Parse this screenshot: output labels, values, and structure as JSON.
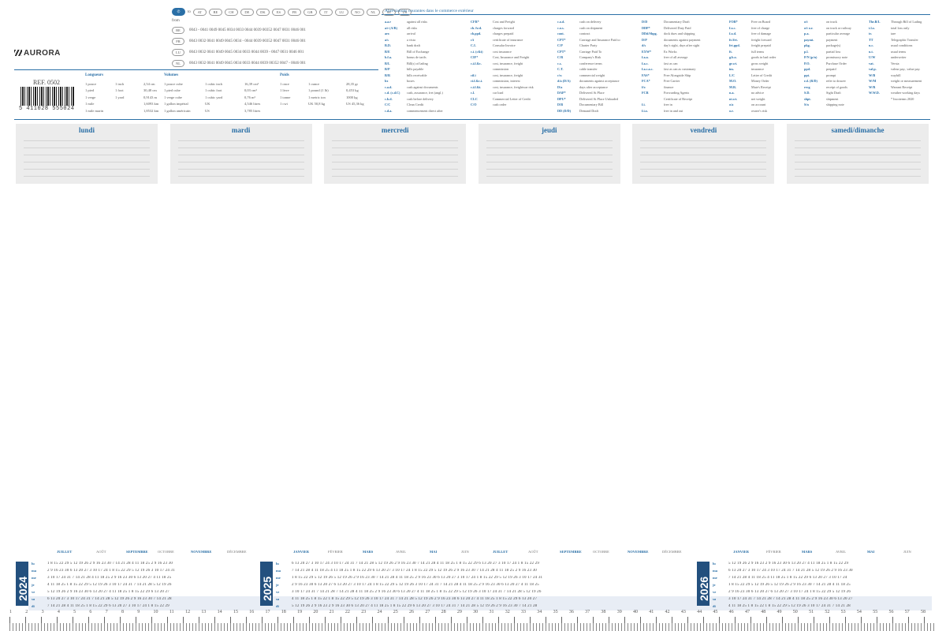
{
  "brand": "AURORA",
  "ref": "REF. 0502",
  "barcode_number": "5 411028 555024",
  "phone": {
    "countries": [
      "AT",
      "BE",
      "CH",
      "DE",
      "DK",
      "ES",
      "FR",
      "GB",
      "IT",
      "LU",
      "NO",
      "NL",
      "SE",
      "US"
    ],
    "from_label": "from",
    "rows": [
      {
        "code": "BE",
        "nums": "0043 - 0041 0049 0045 0034 0033 0044 0039 00352 0047 0031 0046 001"
      },
      {
        "code": "FR",
        "nums": "0043 0032 0041 0049 0045 0034 - 0044 0039 00352 0047 0031 0046 001"
      },
      {
        "code": "LU",
        "nums": "0043 0032 0041 0049 0045 0034 0033 0044 0039 - 0047 0031 0046 001"
      },
      {
        "code": "NL",
        "nums": "0043 0032 0041 0049 0045 0034 0033 0044 0039 00352 0047 - 0046 001"
      }
    ]
  },
  "conversions": {
    "lengths": {
      "title": "Longueurs",
      "rows": [
        [
          "1 pouce",
          "1 inch",
          "2,54 cm"
        ],
        [
          "1 pied",
          "1 foot",
          "30,48 cm"
        ],
        [
          "1 verge",
          "1 yard",
          "0,9143 m"
        ],
        [
          "1 mile",
          "",
          "1,6093 km"
        ],
        [
          "1 mile marin",
          "",
          "1,8532 km"
        ]
      ]
    },
    "volumes": {
      "title": "Volumes",
      "rows": [
        [
          "1 pouce cube",
          "1 cubic inch",
          "16,39 cm³"
        ],
        [
          "1 pied cube",
          "1 cubic foot",
          "0,03 cm³"
        ],
        [
          "1 verge cube",
          "1 cubic yard",
          "0,76 m³"
        ],
        [
          "1 gallon impérial",
          "UK",
          "4,546 litres"
        ],
        [
          "1 gallon américain",
          "US",
          "3,785 litres"
        ]
      ]
    },
    "weights": {
      "title": "Poids",
      "rows": [
        [
          "1 once",
          "1 ounce",
          "28,35 gr"
        ],
        [
          "1 livre",
          "1 pound (1 lb)",
          "0,453 kg"
        ],
        [
          "1 tonne",
          "1 metric ton",
          "1000 kg"
        ],
        [
          "1 cwt",
          "UK 50,8 kg",
          "US 45,36 kg"
        ]
      ]
    }
  },
  "abbreviations": {
    "title": "Abréviations courantes dans le commerce extérieur",
    "columns": [
      [
        [
          "a.a.r",
          "against all risks"
        ],
        [
          "a/r (A/R)",
          "all risks"
        ],
        [
          "arr.",
          "arrival"
        ],
        [
          "a/s",
          "a vista"
        ],
        [
          "B.D.",
          "bank draft"
        ],
        [
          "B/E",
          "Bill of Exchange"
        ],
        [
          "b.f.a.",
          "bonus de tarifs"
        ],
        [
          "B/L",
          "Bill(s) of lading"
        ],
        [
          "B/P",
          "bills payable"
        ],
        [
          "B/R",
          "bills receivable"
        ],
        [
          "bx",
          "boxes"
        ],
        [
          "c.a.d.",
          "cash against documents"
        ],
        [
          "c.d. (c.d.C)",
          "cash, assurance, fret (angl.)"
        ],
        [
          "c.b.d.",
          "cash before delivery"
        ],
        [
          "C/C",
          "Clean Credit"
        ],
        [
          "c.d.a.",
          "commencement direct after"
        ]
      ],
      [
        [
          "CFR*",
          "Cost and Freight"
        ],
        [
          "ch. fwd.",
          "charges forward"
        ],
        [
          "ch.ppd.",
          "charges prepaid"
        ],
        [
          "c/i",
          "certificate of insurance"
        ],
        [
          "C.I.",
          "Consular Invoice"
        ],
        [
          "c.i. (c&i)",
          "cost insurance"
        ],
        [
          "CIF*",
          "Cost, Insurance and Freight"
        ],
        [
          "c.i.f.&c.",
          "cost, insurance, freight"
        ],
        [
          "",
          "commission"
        ],
        [
          "cif.i",
          "cost, insurance, freight"
        ],
        [
          "ci.f.&c.i.",
          "commission, interest"
        ],
        [
          "c.i.f.&i.",
          "cost, insurance, freightwar risk"
        ],
        [
          "c.l.",
          "car load"
        ],
        [
          "CLC",
          "Commercial Letter of Credit"
        ],
        [
          "C/O",
          "cash order"
        ]
      ],
      [
        [
          "c.o.d.",
          "cash on delivery"
        ],
        [
          "c.o.s.",
          "cash on shipment"
        ],
        [
          "cont.",
          "contract"
        ],
        [
          "CPT*",
          "Carriage and Insurance Paid to"
        ],
        [
          "C/P",
          "Charter Party"
        ],
        [
          "CPT*",
          "Carriage Paid To"
        ],
        [
          "C/R",
          "Company's Risk"
        ],
        [
          "c.s.",
          "conference terms"
        ],
        [
          "C.T.",
          "cable transfer"
        ],
        [
          "c/w",
          "commercial weight"
        ],
        [
          "d/a (D/A)",
          "documents against acceptance"
        ],
        [
          "D/a",
          "days after acceptance"
        ],
        [
          "DAP*",
          "Delivered At Place"
        ],
        [
          "DPU*",
          "Delivered At Place Unloaded"
        ],
        [
          "D/B",
          "Documentary Bill"
        ],
        [
          "DD (D/D)",
          "Demand Draft"
        ]
      ],
      [
        [
          "D/D",
          "Documentary Draft"
        ],
        [
          "DDP*",
          "Delivered Duty Paid"
        ],
        [
          "DDd/Shpg.",
          "dock dues and shipping"
        ],
        [
          "D/P",
          "documents against payment"
        ],
        [
          "d/s",
          "day's sight, days after sight"
        ],
        [
          "EXW*",
          "Ex Works"
        ],
        [
          "f.a.a.",
          "free of all average"
        ],
        [
          "f.a.c.",
          "fast as can"
        ],
        [
          "f.a.c.a.c.",
          "fast as can as customary"
        ],
        [
          "FAS*",
          "Free Alongside Ship"
        ],
        [
          "FCA*",
          "Free Carrier"
        ],
        [
          "f/o",
          "finance"
        ],
        [
          "FCR",
          "Forwarding Agents"
        ],
        [
          "",
          "Certificate of Receipt"
        ],
        [
          "f.i.",
          "free in"
        ],
        [
          "f.i.o.",
          "free in and out"
        ]
      ],
      [
        [
          "FOB*",
          "Free on Board"
        ],
        [
          "f.o.c.",
          "free of charge"
        ],
        [
          "f.o.d.",
          "free of damage"
        ],
        [
          "fr./frt.",
          "freight forward"
        ],
        [
          "frt.ppd.",
          "freight prepaid"
        ],
        [
          "ft.",
          "full terms"
        ],
        [
          "g.b.o.",
          "goods in bad order"
        ],
        [
          "gr.wt.",
          "gross weight"
        ],
        [
          "ins.",
          "insurance"
        ],
        [
          "L/C",
          "Letter of Credit"
        ],
        [
          "M.O.",
          "Money Order"
        ],
        [
          "M.R.",
          "Mate's Receipt"
        ],
        [
          "n.a.",
          "no advice"
        ],
        [
          "nt.wt.",
          "net weight"
        ],
        [
          "o/a",
          "on account"
        ],
        [
          "o.r.",
          "owner's risk"
        ]
      ],
      [
        [
          "o/t",
          "on truck"
        ],
        [
          "o/t o.r.",
          "on truck or railway"
        ],
        [
          "p.a.",
          "particular average"
        ],
        [
          "paymt.",
          "payment"
        ],
        [
          "pkg.",
          "package(s)"
        ],
        [
          "p.l.",
          "partial loss"
        ],
        [
          "P/N (p/n)",
          "promissory note"
        ],
        [
          "P.O.",
          "Purchase Order"
        ],
        [
          "ppd.",
          "prepaid"
        ],
        [
          "ppt.",
          "prompt"
        ],
        [
          "r.d. (R/D)",
          "refer to drawer"
        ],
        [
          "recg",
          "receipt of goods"
        ],
        [
          "S.D.",
          "Sight Draft"
        ],
        [
          "shpt.",
          "shipment"
        ],
        [
          "S/n",
          "shipping note"
        ]
      ],
      [
        [
          "Thr.B/L",
          "Through Bill of Lading"
        ],
        [
          "t.l.o.",
          "total loss only"
        ],
        [
          "tr.",
          "tare"
        ],
        [
          "TT",
          "Telegraphic Transfer"
        ],
        [
          "u.c.",
          "usual conditions"
        ],
        [
          "u.t.",
          "usual terms"
        ],
        [
          "U/W",
          "underwriter"
        ],
        [
          "vat.",
          "Versta"
        ],
        [
          "val.p.",
          "valeur pay., value pay."
        ],
        [
          "W/B",
          "waybill"
        ],
        [
          "W/M",
          "weight or measurement"
        ],
        [
          "W/R",
          "Warrant Receipt"
        ],
        [
          "W.W.D.",
          "weather working days"
        ],
        [
          "",
          "* Incoterms 2020"
        ]
      ]
    ]
  },
  "days": [
    "lundi",
    "mardi",
    "mercredi",
    "jeudi",
    "vendredi",
    "samedi/dimanche"
  ],
  "calendar": {
    "years": [
      "2024",
      "2025",
      "2026"
    ],
    "weekdays": [
      "lu",
      "ma",
      "me",
      "je",
      "ve",
      "sa",
      "di"
    ],
    "months_2024": [
      "JUILLET",
      "AOÛT",
      "SEPTEMBRE",
      "OCTOBRE",
      "NOVEMBRE",
      "DÉCEMBRE"
    ],
    "months_2025": [
      "JANVIER",
      "FÉVRIER",
      "MARS",
      "AVRIL",
      "MAI",
      "JUIN",
      "JUILLET",
      "AOÛT",
      "SEPTEMBRE",
      "OCTOBRE",
      "NOVEMBRE",
      "DÉCEMBRE"
    ],
    "months_2026": [
      "JANVIER",
      "FÉVRIER",
      "MARS",
      "AVRIL",
      "MAI",
      "JUIN"
    ],
    "rows_2024": [
      "1 8 15 22 29  5 12 19 26  2 9 16 23 30  7 14 21 28  4 11 18 25  2 9 16 23 30",
      "2 9 16 23 30  6 13 20 27  3 10 17 24  1 8 15 22 29  5 12 19 26  3 10 17 24 31",
      "3 10 17 24 31  7 14 21 28  4 11 18 25  2 9 16 23 30  6 13 20 27  4 11 18 25",
      "4 11 18 25  1 8 15 22 29  5 12 19 26  3 10 17 24 31  7 14 21 28  5 12 19 26",
      "5 12 19 26  2 9 16 23 30  6 13 20 27  4 11 18 25  1 8 15 22 29  6 13 20 27",
      "6 13 20 27  3 10 17 24 31  7 14 21 28  5 12 19 26  2 9 16 23 30  7 14 21 28",
      "7 14 21 28  4 11 18 25  1 8 15 22 29  6 13 20 27  3 10 17 24  1 8 15 22 29"
    ],
    "rows_2025": [
      "6 13 20 27  3 10 17 24  3 10 17 24 31  7 14 21 28  5 12 19 26  2 9 16 23 30  7 14 21 28  4 11 18 25  1 8 15 22 29  6 13 20 27  3 10 17 24  1 8 15 22 29",
      "7 14 21 28  4 11 18 25  4 11 18 25  1 8 15 22 29  6 13 20 27  3 10 17 24  1 8 15 22 29  5 12 19 26  2 9 16 23 30  7 14 21 28  4 11 18 25  2 9 16 23 30",
      "1 8 15 22 29  5 12 19 26  5 12 19 26  2 9 16 23 30  7 14 21 28  4 11 18 25  2 9 16 23 30  6 13 20 27  3 10 17 24  1 8 15 22 29  5 12 19 26  3 10 17 24 31",
      "2 9 16 23 30  6 13 20 27  6 13 20 27  3 10 17 24  1 8 15 22 29  5 12 19 26  3 10 17 24 31  7 14 21 28  4 11 18 25  2 9 16 23 30  6 13 20 27  4 11 18 25",
      "3 10 17 24 31  7 14 21 28  7 14 21 28  4 11 18 25  2 9 16 23 30  6 13 20 27  4 11 18 25  1 8 15 22 29  5 12 19 26  3 10 17 24 31  7 14 21 28  5 12 19 26",
      "4 11 18 25  1 8 15 22  1 8 15 22 29  5 12 19 26  3 10 17 24 31  7 14 21 28  5 12 19 26  2 9 16 23 30  6 13 20 27  4 11 18 25  1 8 15 22 29  6 13 20 27",
      "5 12 19 26  2 9 16 23  2 9 16 23 30  6 13 20 27  4 11 18 25  1 8 15 22 29  6 13 20 27  3 10 17 24 31  7 14 21 28  5 12 19 26  2 9 16 23 30  7 14 21 28"
    ],
    "rows_2026": [
      "5 12 19 26  2 9 16 23  2 9 16 23 30  6 13 20 27  4 11 18 25  1 8 15 22 29",
      "6 13 20 27  3 10 17 24  3 10 17 24 31  7 14 21 28  5 12 19 26  2 9 16 23 30",
      "7 14 21 28  4 11 18 25  4 11 18 25  1 8 15 22 29  6 13 20 27  3 10 17 24",
      "1 8 15 22 29  5 12 19 26  5 12 19 26  2 9 16 23 30  7 14 21 28  4 11 18 25",
      "2 9 16 23 30  6 13 20 27  6 13 20 27  3 10 17 24  1 8 15 22 29  5 12 19 26",
      "3 10 17 24 31  7 14 21 28  7 14 21 28  4 11 18 25  2 9 16 23 30  6 13 20 27",
      "4 11 18 25  1 8 15 22  1 8 15 22 29  5 12 19 26  3 10 17 24 31  7 14 21 28"
    ]
  },
  "ruler": [
    "1",
    "2",
    "3",
    "4",
    "5",
    "6",
    "7",
    "8",
    "9",
    "10",
    "11",
    "12",
    "13",
    "14",
    "15",
    "16",
    "17",
    "18",
    "19",
    "20",
    "21",
    "22",
    "23",
    "24",
    "25",
    "26",
    "27",
    "28",
    "29",
    "30",
    "31",
    "32",
    "33",
    "34",
    "35",
    "36",
    "37",
    "38",
    "39",
    "40",
    "41",
    "42",
    "43",
    "44",
    "45",
    "46",
    "47",
    "48",
    "49",
    "50",
    "51",
    "52",
    "53",
    "54",
    "55",
    "56",
    "57",
    "58"
  ]
}
